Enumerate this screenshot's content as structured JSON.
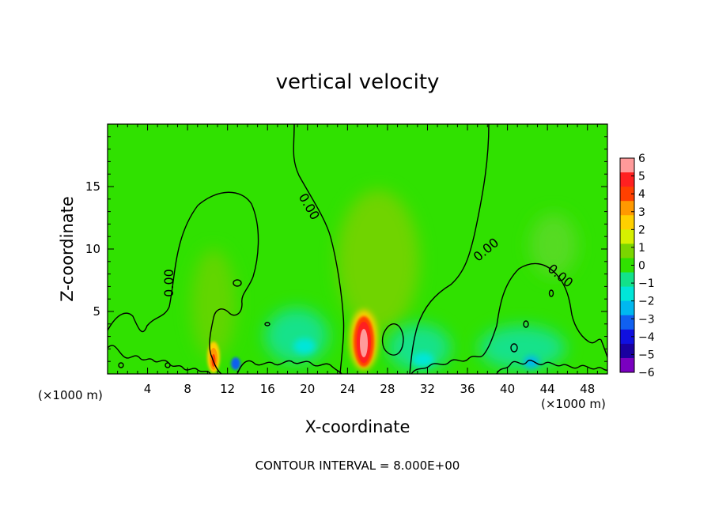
{
  "chart_data": {
    "type": "heatmap",
    "title": "vertical velocity",
    "xlabel": "X-coordinate",
    "ylabel": "Z-coordinate",
    "x_unit_left": "(×1000 m)",
    "x_unit_right": "(×1000 m)",
    "xlim": [
      0,
      50
    ],
    "ylim": [
      0,
      20
    ],
    "x_ticks": [
      "4",
      "8",
      "12",
      "16",
      "20",
      "24",
      "28",
      "32",
      "36",
      "40",
      "44",
      "48"
    ],
    "y_ticks": [
      "5",
      "10",
      "15"
    ],
    "colorbar": {
      "min": -6,
      "max": 6,
      "labels": [
        "6",
        "5",
        "4",
        "3",
        "2",
        "1",
        "0",
        "−1",
        "−2",
        "−3",
        "−4",
        "−5",
        "−6"
      ],
      "colors": [
        "#ff9a9a",
        "#ff2020",
        "#ff4000",
        "#ff9900",
        "#ffd000",
        "#d6f000",
        "#7ad600",
        "#30e100",
        "#12e28a",
        "#00e6d8",
        "#00b8f0",
        "#1060f0",
        "#1010e0",
        "#1a00a0",
        "#7a00c0"
      ]
    },
    "contour_label": "0.00",
    "contour_interval_text": "CONTOUR INTERVAL = 8.000E+00",
    "field_features": [
      {
        "kind": "updraft",
        "x": 25.5,
        "z": 2.5,
        "value": 6
      },
      {
        "kind": "updraft",
        "x": 10.8,
        "z": 1.2,
        "value": 4
      },
      {
        "kind": "weak-updraft",
        "x": 26.5,
        "z": 9.0,
        "value": 1
      },
      {
        "kind": "downdraft",
        "x": 19.0,
        "z": 3.0,
        "value": -1.5
      },
      {
        "kind": "downdraft",
        "x": 31.0,
        "z": 2.5,
        "value": -1.5
      },
      {
        "kind": "downdraft",
        "x": 42.0,
        "z": 2.0,
        "value": -1.0
      }
    ]
  }
}
